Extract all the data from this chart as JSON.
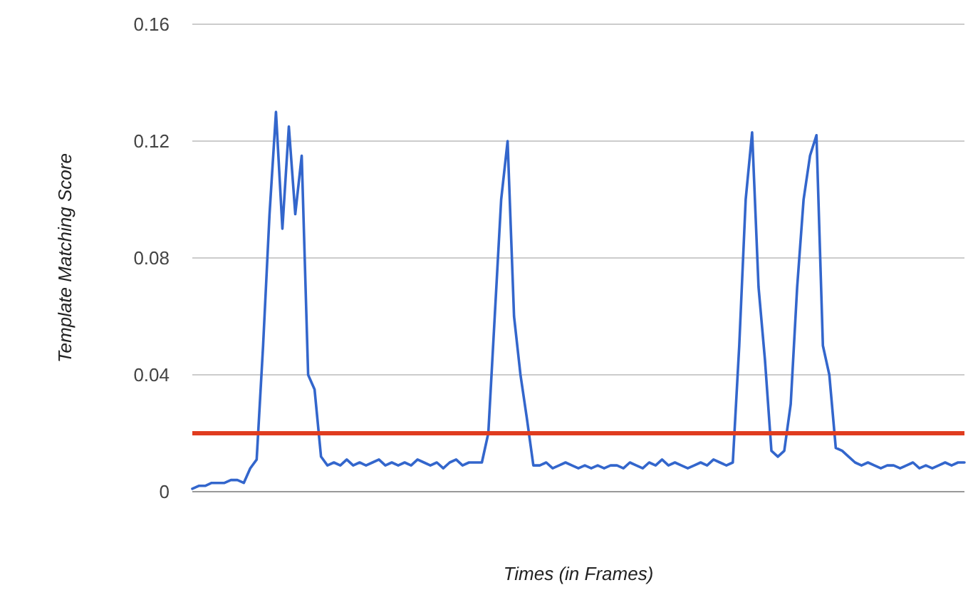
{
  "chart_data": {
    "type": "line",
    "xlabel": "Times (in Frames)",
    "ylabel": "Template Matching Score",
    "categories": [
      null,
      null,
      null,
      null,
      null,
      null,
      null,
      null,
      null,
      null,
      null,
      null,
      null,
      null,
      null,
      null,
      null,
      null,
      null,
      null,
      null,
      null,
      null,
      null,
      null,
      null,
      null,
      null,
      null,
      null,
      null,
      null,
      null,
      null,
      null,
      null,
      null,
      null,
      null,
      null,
      null,
      null,
      null,
      null,
      null,
      null,
      null,
      null,
      null,
      null,
      null,
      null,
      null,
      null,
      null,
      null,
      null,
      null,
      null,
      null,
      null,
      null,
      null,
      null,
      null,
      null,
      null,
      null,
      null,
      null,
      null,
      null,
      null,
      null,
      null,
      null,
      null,
      null,
      null,
      null,
      null,
      null,
      null,
      null,
      null,
      null,
      null,
      null,
      null,
      null,
      null,
      null,
      null,
      null,
      null,
      null,
      null,
      null,
      null,
      null,
      null,
      null,
      null,
      null,
      null,
      null,
      null,
      null,
      null,
      null,
      null,
      null,
      null,
      null,
      null,
      null,
      null,
      null,
      null,
      null,
      null
    ],
    "series": [
      {
        "color": "#3366cc",
        "values": [
          0.001,
          0.002,
          0.002,
          0.003,
          0.003,
          0.003,
          0.004,
          0.004,
          0.003,
          0.008,
          0.011,
          0.05,
          0.095,
          0.13,
          0.09,
          0.125,
          0.095,
          0.115,
          0.04,
          0.035,
          0.012,
          0.009,
          0.01,
          0.009,
          0.011,
          0.009,
          0.01,
          0.009,
          0.01,
          0.011,
          0.009,
          0.01,
          0.009,
          0.01,
          0.009,
          0.011,
          0.01,
          0.009,
          0.01,
          0.008,
          0.01,
          0.011,
          0.009,
          0.01,
          0.01,
          0.01,
          0.02,
          0.06,
          0.1,
          0.12,
          0.06,
          0.04,
          0.025,
          0.009,
          0.009,
          0.01,
          0.008,
          0.009,
          0.01,
          0.009,
          0.008,
          0.009,
          0.008,
          0.009,
          0.008,
          0.009,
          0.009,
          0.008,
          0.01,
          0.009,
          0.008,
          0.01,
          0.009,
          0.011,
          0.009,
          0.01,
          0.009,
          0.008,
          0.009,
          0.01,
          0.009,
          0.011,
          0.01,
          0.009,
          0.01,
          0.05,
          0.1,
          0.123,
          0.07,
          0.045,
          0.014,
          0.012,
          0.014,
          0.03,
          0.07,
          0.1,
          0.115,
          0.122,
          0.05,
          0.04,
          0.015,
          0.014,
          0.012,
          0.01,
          0.009,
          0.01,
          0.009,
          0.008,
          0.009,
          0.009,
          0.008,
          0.009,
          0.01,
          0.008,
          0.009,
          0.008,
          0.009,
          0.01,
          0.009,
          0.01,
          0.01
        ]
      }
    ],
    "ylim": [
      0,
      0.16
    ],
    "yticks": [
      0,
      0.04,
      0.08,
      0.12,
      0.16
    ],
    "grid": "y",
    "ref_lines": [
      {
        "axis": "y",
        "value": 0.02,
        "color": "#e03c1f"
      }
    ]
  }
}
